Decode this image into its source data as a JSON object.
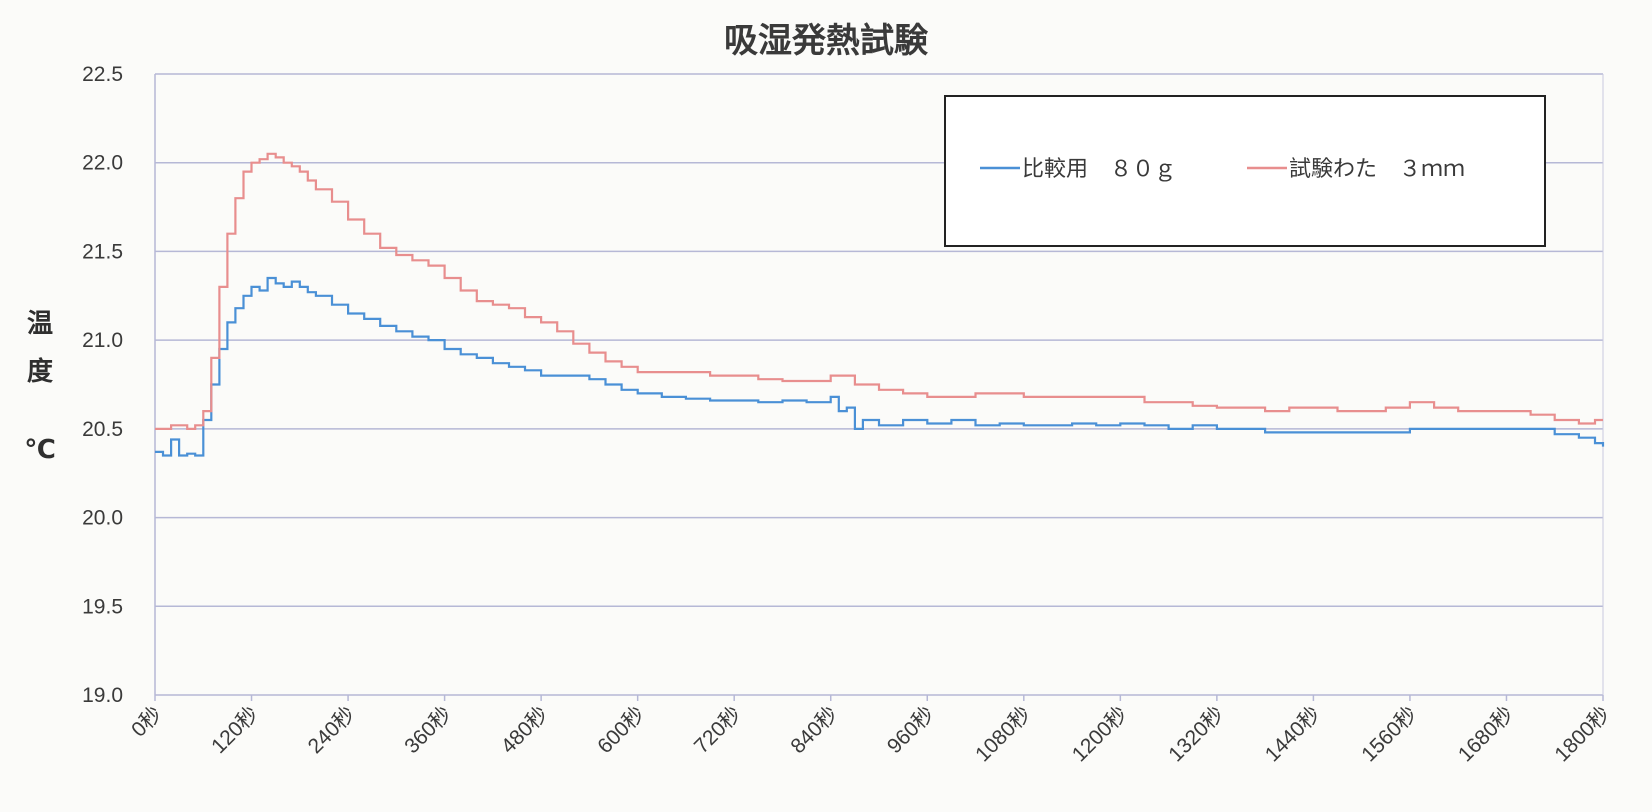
{
  "chart_data": {
    "type": "line",
    "title": "吸湿発熱試験",
    "xlabel": "",
    "ylabel": [
      "温",
      "度",
      "℃"
    ],
    "ylim": [
      19.0,
      22.5
    ],
    "yticks": [
      "19.0",
      "19.5",
      "20.0",
      "20.5",
      "21.0",
      "21.5",
      "22.0",
      "22.5"
    ],
    "xlim": [
      0,
      1800
    ],
    "xticks": [
      "0秒",
      "120秒",
      "240秒",
      "360秒",
      "480秒",
      "600秒",
      "720秒",
      "840秒",
      "960秒",
      "1080秒",
      "1200秒",
      "1320秒",
      "1440秒",
      "1560秒",
      "1680秒",
      "1800秒"
    ],
    "grid": true,
    "legend_position": "top-right",
    "series": [
      {
        "name": "比較用　８０ｇ",
        "color": "#4a90d6",
        "x": [
          0,
          10,
          20,
          30,
          40,
          50,
          60,
          70,
          80,
          90,
          100,
          110,
          120,
          130,
          140,
          150,
          160,
          170,
          180,
          190,
          200,
          220,
          240,
          260,
          280,
          300,
          320,
          340,
          360,
          380,
          400,
          420,
          440,
          460,
          480,
          500,
          520,
          540,
          560,
          580,
          600,
          630,
          660,
          690,
          720,
          750,
          780,
          810,
          840,
          850,
          860,
          870,
          880,
          900,
          930,
          960,
          990,
          1020,
          1050,
          1080,
          1110,
          1140,
          1170,
          1200,
          1230,
          1260,
          1290,
          1320,
          1350,
          1380,
          1410,
          1440,
          1470,
          1500,
          1530,
          1560,
          1590,
          1620,
          1650,
          1680,
          1710,
          1740,
          1770,
          1790,
          1800
        ],
        "y": [
          20.37,
          20.35,
          20.44,
          20.35,
          20.36,
          20.35,
          20.55,
          20.75,
          20.95,
          21.1,
          21.18,
          21.25,
          21.3,
          21.28,
          21.35,
          21.32,
          21.3,
          21.33,
          21.3,
          21.27,
          21.25,
          21.2,
          21.15,
          21.12,
          21.08,
          21.05,
          21.02,
          21.0,
          20.95,
          20.92,
          20.9,
          20.87,
          20.85,
          20.83,
          20.8,
          20.8,
          20.8,
          20.78,
          20.75,
          20.72,
          20.7,
          20.68,
          20.67,
          20.66,
          20.66,
          20.65,
          20.66,
          20.65,
          20.68,
          20.6,
          20.62,
          20.5,
          20.55,
          20.52,
          20.55,
          20.53,
          20.55,
          20.52,
          20.53,
          20.52,
          20.52,
          20.53,
          20.52,
          20.53,
          20.52,
          20.5,
          20.52,
          20.5,
          20.5,
          20.48,
          20.48,
          20.48,
          20.48,
          20.48,
          20.48,
          20.5,
          20.5,
          20.5,
          20.5,
          20.5,
          20.5,
          20.47,
          20.45,
          20.42,
          20.4
        ]
      },
      {
        "name": "試験わた　３ｍｍ",
        "color": "#e88e8e",
        "x": [
          0,
          10,
          20,
          30,
          40,
          50,
          60,
          70,
          80,
          90,
          100,
          110,
          120,
          130,
          140,
          150,
          160,
          170,
          180,
          190,
          200,
          220,
          240,
          260,
          280,
          300,
          320,
          340,
          360,
          380,
          400,
          420,
          440,
          460,
          480,
          500,
          520,
          540,
          560,
          580,
          600,
          630,
          660,
          690,
          720,
          750,
          780,
          810,
          840,
          870,
          900,
          930,
          960,
          990,
          1020,
          1050,
          1080,
          1110,
          1140,
          1170,
          1200,
          1230,
          1260,
          1290,
          1320,
          1350,
          1380,
          1410,
          1440,
          1470,
          1500,
          1530,
          1560,
          1590,
          1620,
          1650,
          1680,
          1710,
          1740,
          1770,
          1790,
          1800
        ],
        "y": [
          20.5,
          20.5,
          20.52,
          20.52,
          20.5,
          20.52,
          20.6,
          20.9,
          21.3,
          21.6,
          21.8,
          21.95,
          22.0,
          22.02,
          22.05,
          22.03,
          22.0,
          21.98,
          21.95,
          21.9,
          21.85,
          21.78,
          21.68,
          21.6,
          21.52,
          21.48,
          21.45,
          21.42,
          21.35,
          21.28,
          21.22,
          21.2,
          21.18,
          21.13,
          21.1,
          21.05,
          20.98,
          20.93,
          20.88,
          20.85,
          20.82,
          20.82,
          20.82,
          20.8,
          20.8,
          20.78,
          20.77,
          20.77,
          20.8,
          20.75,
          20.72,
          20.7,
          20.68,
          20.68,
          20.7,
          20.7,
          20.68,
          20.68,
          20.68,
          20.68,
          20.68,
          20.65,
          20.65,
          20.63,
          20.62,
          20.62,
          20.6,
          20.62,
          20.62,
          20.6,
          20.6,
          20.62,
          20.65,
          20.62,
          20.6,
          20.6,
          20.6,
          20.58,
          20.55,
          20.53,
          20.55,
          20.55
        ]
      }
    ]
  }
}
